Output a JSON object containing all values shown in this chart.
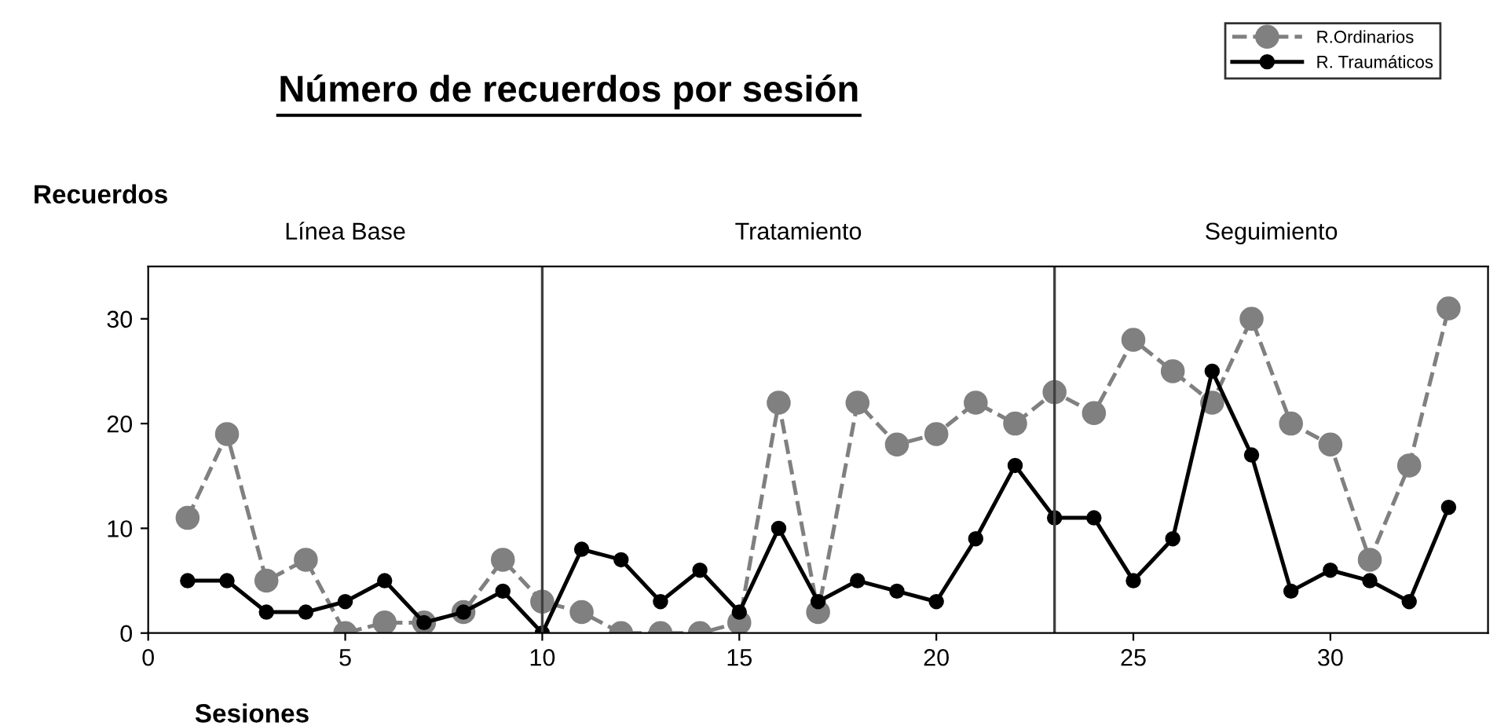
{
  "chart_data": {
    "type": "line",
    "title": "Número de recuerdos por sesión",
    "xlabel": "Sesiones",
    "ylabel": "Recuerdos",
    "x": [
      1,
      2,
      3,
      4,
      5,
      6,
      7,
      8,
      9,
      10,
      11,
      12,
      13,
      14,
      15,
      16,
      17,
      18,
      19,
      20,
      21,
      22,
      23,
      24,
      25,
      26,
      27,
      28,
      29,
      30,
      31,
      32,
      33
    ],
    "series": [
      {
        "name": "R.Ordinarios",
        "color": "#808080",
        "line_style": "dashed",
        "marker": "circle",
        "values": [
          11,
          19,
          5,
          7,
          0,
          1,
          1,
          2,
          7,
          3,
          2,
          0,
          0,
          0,
          1,
          22,
          2,
          22,
          18,
          19,
          22,
          20,
          23,
          21,
          28,
          25,
          22,
          30,
          20,
          18,
          7,
          16,
          31
        ]
      },
      {
        "name": "R. Traumáticos",
        "color": "#000000",
        "line_style": "solid",
        "marker": "circle",
        "values": [
          5,
          5,
          2,
          2,
          3,
          5,
          1,
          2,
          4,
          0,
          8,
          7,
          3,
          6,
          2,
          10,
          3,
          5,
          4,
          3,
          9,
          16,
          11,
          11,
          5,
          9,
          25,
          17,
          4,
          6,
          5,
          3,
          12
        ]
      }
    ],
    "xlim": [
      0,
      34
    ],
    "xticks": [
      0,
      5,
      10,
      15,
      20,
      25,
      30
    ],
    "ylim": [
      0,
      35
    ],
    "yticks": [
      0,
      10,
      20,
      30
    ],
    "ref_lines": [
      {
        "axis": "x",
        "value": 10,
        "color": "#404040"
      },
      {
        "axis": "x",
        "value": 23,
        "color": "#404040"
      }
    ],
    "annotations": [
      "Línea Base",
      "Tratamiento",
      "Seguimiento"
    ],
    "grid": false,
    "legend": "top right"
  }
}
